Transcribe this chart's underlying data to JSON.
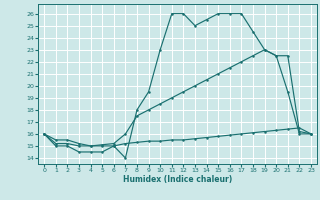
{
  "xlabel": "Humidex (Indice chaleur)",
  "bg_color": "#cde8e8",
  "grid_color": "#ffffff",
  "line_color": "#1a7070",
  "xlim": [
    -0.5,
    23.5
  ],
  "ylim": [
    13.5,
    26.8
  ],
  "yticks": [
    14,
    15,
    16,
    17,
    18,
    19,
    20,
    21,
    22,
    23,
    24,
    25,
    26
  ],
  "xticks": [
    0,
    1,
    2,
    3,
    4,
    5,
    6,
    7,
    8,
    9,
    10,
    11,
    12,
    13,
    14,
    15,
    16,
    17,
    18,
    19,
    20,
    21,
    22,
    23
  ],
  "line1_x": [
    0,
    1,
    2,
    3,
    4,
    5,
    6,
    7,
    8,
    9,
    10,
    11,
    12,
    13,
    14,
    15,
    16,
    17,
    18,
    19,
    20,
    21,
    22,
    23
  ],
  "line1_y": [
    16,
    15,
    15,
    14.5,
    14.5,
    14.5,
    15,
    14,
    18,
    19.5,
    23,
    26,
    26,
    25,
    25.5,
    26,
    26,
    26,
    24.5,
    23,
    22.5,
    19.5,
    16,
    16
  ],
  "line2_x": [
    0,
    1,
    2,
    3,
    4,
    5,
    6,
    7,
    8,
    9,
    10,
    11,
    12,
    13,
    14,
    15,
    16,
    17,
    18,
    19,
    20,
    21,
    22,
    23
  ],
  "line2_y": [
    16,
    15.5,
    15.5,
    15.2,
    15.0,
    15.1,
    15.2,
    16.0,
    17.5,
    18.0,
    18.5,
    19.0,
    19.5,
    20.0,
    20.5,
    21.0,
    21.5,
    22.0,
    22.5,
    23.0,
    22.5,
    22.5,
    16.2,
    16
  ],
  "line3_x": [
    0,
    1,
    2,
    3,
    4,
    5,
    6,
    7,
    8,
    9,
    10,
    11,
    12,
    13,
    14,
    15,
    16,
    17,
    18,
    19,
    20,
    21,
    22,
    23
  ],
  "line3_y": [
    16,
    15.2,
    15.2,
    15.0,
    15.0,
    15.0,
    15.0,
    15.2,
    15.3,
    15.4,
    15.4,
    15.5,
    15.5,
    15.6,
    15.7,
    15.8,
    15.9,
    16.0,
    16.1,
    16.2,
    16.3,
    16.4,
    16.5,
    16.0
  ]
}
